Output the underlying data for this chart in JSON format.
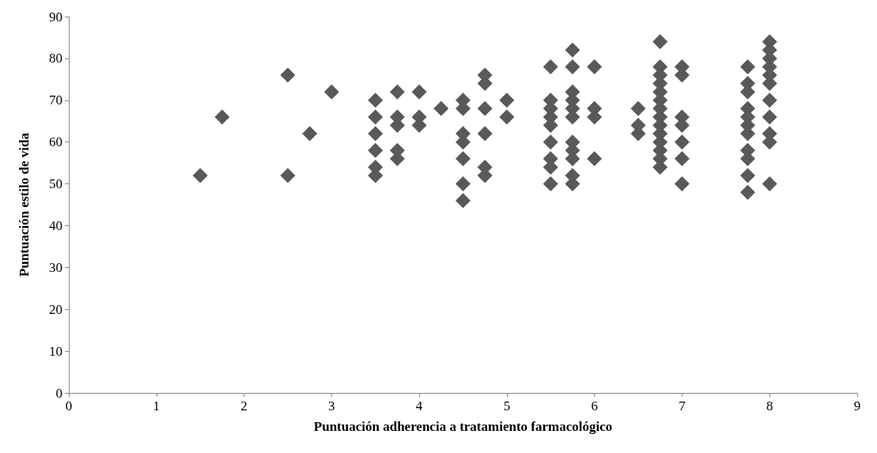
{
  "chart_data": {
    "type": "scatter",
    "xlabel": "Puntuación adherencia a tratamiento farmacológico",
    "ylabel": "Puntuación estilo de vida",
    "x": [
      1.5,
      1.75,
      2.5,
      2.5,
      2.75,
      3,
      3.5,
      3.5,
      3.5,
      3.5,
      3.5,
      3.5,
      3.75,
      3.75,
      3.75,
      3.75,
      3.75,
      4,
      4,
      4,
      4.25,
      4.5,
      4.5,
      4.5,
      4.5,
      4.5,
      4.5,
      4.5,
      4.75,
      4.75,
      4.75,
      4.75,
      4.75,
      4.75,
      5,
      5,
      5.5,
      5.5,
      5.5,
      5.5,
      5.5,
      5.5,
      5.5,
      5.5,
      5.5,
      5.75,
      5.75,
      5.75,
      5.75,
      5.75,
      5.75,
      5.75,
      5.75,
      5.75,
      5.75,
      5.75,
      6,
      6,
      6,
      6,
      6.5,
      6.5,
      6.5,
      6.75,
      6.75,
      6.75,
      6.75,
      6.75,
      6.75,
      6.75,
      6.75,
      6.75,
      6.75,
      6.75,
      6.75,
      6.75,
      6.75,
      7,
      7,
      7,
      7,
      7,
      7,
      7,
      7.75,
      7.75,
      7.75,
      7.75,
      7.75,
      7.75,
      7.75,
      7.75,
      7.75,
      7.75,
      7.75,
      8,
      8,
      8,
      8,
      8,
      8,
      8,
      8,
      8,
      8,
      8
    ],
    "values": [
      52,
      66,
      76,
      52,
      62,
      72,
      70,
      66,
      62,
      58,
      54,
      52,
      72,
      66,
      64,
      58,
      56,
      72,
      66,
      64,
      68,
      70,
      68,
      62,
      60,
      56,
      50,
      46,
      76,
      74,
      68,
      62,
      54,
      52,
      70,
      66,
      78,
      70,
      68,
      66,
      64,
      60,
      56,
      54,
      50,
      82,
      78,
      72,
      70,
      68,
      66,
      60,
      58,
      56,
      52,
      50,
      78,
      68,
      66,
      56,
      68,
      64,
      62,
      84,
      78,
      76,
      74,
      72,
      70,
      68,
      66,
      64,
      62,
      60,
      58,
      56,
      54,
      78,
      76,
      66,
      64,
      60,
      56,
      50,
      78,
      74,
      72,
      68,
      66,
      64,
      62,
      58,
      56,
      52,
      48,
      84,
      82,
      80,
      78,
      76,
      74,
      70,
      66,
      62,
      60,
      50
    ],
    "color": "#595959",
    "marker": "diamond",
    "xlim": [
      0,
      9
    ],
    "xticks": [
      0,
      1,
      2,
      3,
      4,
      5,
      6,
      7,
      8,
      9
    ],
    "ylim": [
      0,
      90
    ],
    "yticks": [
      0,
      10,
      20,
      30,
      40,
      50,
      60,
      70,
      80,
      90
    ],
    "grid": false
  }
}
